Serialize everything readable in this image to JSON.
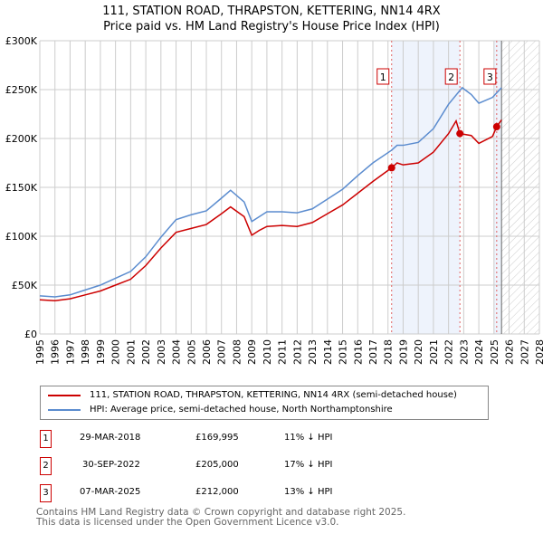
{
  "chart_data": {
    "type": "line",
    "title": "111, STATION ROAD, THRAPSTON, KETTERING, NN14 4RX",
    "subtitle": "Price paid vs. HM Land Registry's House Price Index (HPI)",
    "xlim": [
      1995,
      2028
    ],
    "ylim": [
      0,
      300000
    ],
    "x_ticks": [
      "1995",
      "1996",
      "1997",
      "1998",
      "1999",
      "2000",
      "2001",
      "2002",
      "2003",
      "2004",
      "2005",
      "2006",
      "2007",
      "2008",
      "2009",
      "2010",
      "2011",
      "2012",
      "2013",
      "2014",
      "2015",
      "2016",
      "2017",
      "2018",
      "2019",
      "2020",
      "2021",
      "2022",
      "2023",
      "2024",
      "2025",
      "2026",
      "2027",
      "2028"
    ],
    "y_ticks": [
      {
        "v": 0,
        "l": "£0"
      },
      {
        "v": 50000,
        "l": "£50K"
      },
      {
        "v": 100000,
        "l": "£100K"
      },
      {
        "v": 150000,
        "l": "£150K"
      },
      {
        "v": 200000,
        "l": "£200K"
      },
      {
        "v": 250000,
        "l": "£250K"
      },
      {
        "v": 300000,
        "l": "£300K"
      }
    ],
    "series": [
      {
        "name": "111, STATION ROAD, THRAPSTON, KETTERING, NN14 4RX (semi-detached house)",
        "color": "#cc0000",
        "x": [
          1995,
          1996,
          1997,
          1998,
          1999,
          2000,
          2001,
          2002,
          2003,
          2004,
          2005,
          2006,
          2007,
          2007.6,
          2008.5,
          2009,
          2009.5,
          2010,
          2011,
          2012,
          2013,
          2014,
          2015,
          2016,
          2017,
          2018.24,
          2018.6,
          2019,
          2020,
          2021,
          2022,
          2022.5,
          2022.75,
          2023.5,
          2024,
          2024.9,
          2025.18,
          2025.5
        ],
        "y": [
          35000,
          34000,
          36000,
          40000,
          44000,
          50000,
          56000,
          70000,
          88000,
          104000,
          108000,
          112000,
          123000,
          130000,
          120000,
          101000,
          106000,
          110000,
          111000,
          110000,
          114000,
          123000,
          132000,
          144000,
          156000,
          169995,
          175000,
          173000,
          175000,
          186000,
          205000,
          218000,
          205000,
          203000,
          195000,
          202000,
          212000,
          219000
        ]
      },
      {
        "name": "HPI: Average price, semi-detached house, North Northamptonshire",
        "color": "#5b8ccf",
        "x": [
          1995,
          1996,
          1997,
          1998,
          1999,
          2000,
          2001,
          2002,
          2003,
          2004,
          2005,
          2006,
          2007,
          2007.6,
          2008.5,
          2009,
          2009.5,
          2010,
          2011,
          2012,
          2013,
          2014,
          2015,
          2016,
          2017,
          2018.24,
          2018.6,
          2019,
          2020,
          2021,
          2022,
          2022.9,
          2023.5,
          2024,
          2024.9,
          2025.5
        ],
        "y": [
          39000,
          38000,
          40000,
          45000,
          50000,
          57000,
          64000,
          79000,
          99000,
          117000,
          122000,
          126000,
          139000,
          147000,
          135000,
          115000,
          120000,
          125000,
          125000,
          124000,
          128000,
          138000,
          148000,
          162000,
          175000,
          188000,
          193000,
          193000,
          196000,
          210000,
          235000,
          252000,
          245000,
          236000,
          242000,
          252000
        ]
      }
    ],
    "sales": [
      {
        "n": "1",
        "x": 2018.24,
        "y": 169995,
        "date": "29-MAR-2018",
        "price": "£169,995",
        "diff": "11% ↓ HPI"
      },
      {
        "n": "2",
        "x": 2022.75,
        "y": 205000,
        "date": "30-SEP-2022",
        "price": "£205,000",
        "diff": "17% ↓ HPI"
      },
      {
        "n": "3",
        "x": 2025.18,
        "y": 212000,
        "date": "07-MAR-2025",
        "price": "£212,000",
        "diff": "13% ↓ HPI"
      }
    ],
    "forecast_from": 2025.5
  },
  "title_line1": "111, STATION ROAD, THRAPSTON, KETTERING, NN14 4RX",
  "title_line2": "Price paid vs. HM Land Registry's House Price Index (HPI)",
  "legend": [
    "111, STATION ROAD, THRAPSTON, KETTERING, NN14 4RX (semi-detached house)",
    "HPI: Average price, semi-detached house, North Northamptonshire"
  ],
  "footer": [
    "Contains HM Land Registry data © Crown copyright and database right 2025.",
    "This data is licensed under the Open Government Licence v3.0."
  ]
}
